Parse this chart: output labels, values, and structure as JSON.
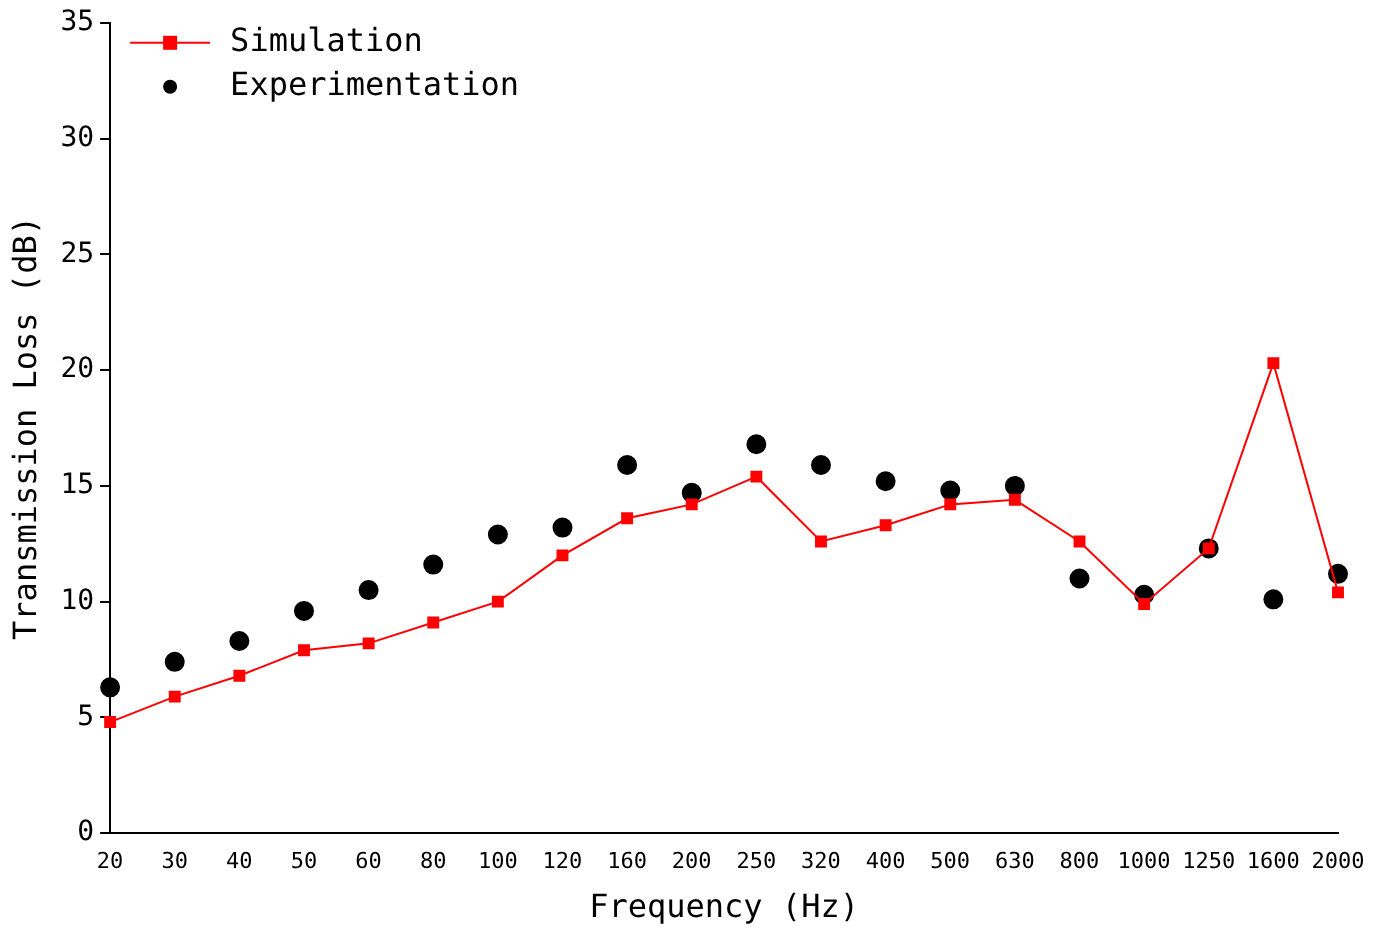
{
  "chart_data": {
    "type": "line",
    "xlabel": "Frequency (Hz)",
    "ylabel": "Transmission Loss (dB)",
    "categories": [
      "20",
      "30",
      "40",
      "50",
      "60",
      "80",
      "100",
      "120",
      "160",
      "200",
      "250",
      "320",
      "400",
      "500",
      "630",
      "800",
      "1000",
      "1250",
      "1600",
      "2000"
    ],
    "series": [
      {
        "name": "Simulation",
        "color": "#ff0000",
        "marker": "square",
        "values": [
          4.8,
          5.9,
          6.8,
          7.9,
          8.2,
          9.1,
          10.0,
          12.0,
          13.6,
          14.2,
          15.4,
          12.6,
          13.3,
          14.2,
          14.4,
          12.6,
          9.9,
          12.3,
          20.3,
          10.4
        ]
      },
      {
        "name": "Experimentation",
        "type": "scatter",
        "color": "#000000",
        "marker": "circle",
        "values": [
          6.3,
          7.4,
          8.3,
          9.6,
          10.5,
          11.6,
          12.9,
          13.2,
          15.9,
          14.7,
          16.8,
          15.9,
          15.2,
          14.8,
          15.0,
          11.0,
          10.3,
          12.3,
          10.1,
          11.2
        ]
      }
    ],
    "ylim": [
      0,
      35
    ],
    "yticks": [
      0,
      5,
      10,
      15,
      20,
      25,
      30,
      35
    ],
    "grid": false,
    "legend": "top left"
  }
}
